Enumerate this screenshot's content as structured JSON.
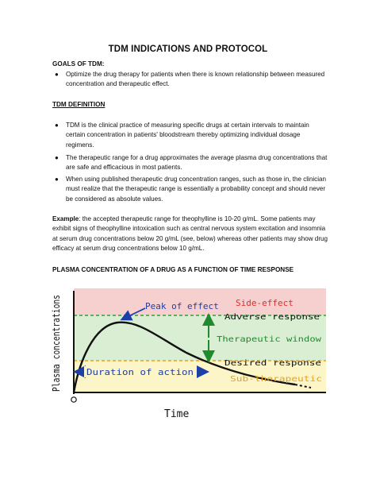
{
  "title": "TDM INDICATIONS AND PROTOCOL",
  "goals": {
    "heading": "GOALS OF TDM:",
    "items": [
      "Optimize the drug therapy for patients when there is known relationship between measured concentration and therapeutic effect."
    ]
  },
  "definition": {
    "heading": "TDM DEFINITION",
    "items": [
      "TDM is the clinical practice of measuring specific drugs at certain intervals to maintain certain concentration in patients' bloodstream thereby optimizing individual dosage regimens.",
      "The therapeutic range for a drug approximates the average plasma drug concentrations that are safe and efficacious in most patients.",
      "When using published therapeutic drug concentration ranges, such as those in, the clinician must realize that the therapeutic range is essentially a probability concept and should never be considered as absolute values."
    ]
  },
  "example": {
    "label": "Example",
    "text": ": the accepted therapeutic range for theophylline is 10-20 g/mL. Some patients may exhibit signs of theophylline intoxication such as central nervous system excitation and insomnia at serum drug concentrations below 20 g/mL (see, below) whereas other patients may show drug efficacy at serum drug concentrations below 10 g/mL."
  },
  "chart_heading": "PLASMA CONCENTRATION OF A DRUG AS A FUNCTION OF TIME RESPONSE",
  "figure": {
    "y_label": "Plasma concentrations",
    "x_label": "Time",
    "origin_label": "O",
    "peak_label": "Peak of effect",
    "side_effect_label": "Side-effect",
    "adverse_label": "Adverse response",
    "window_label": "Therapeutic window",
    "desired_label": "Desired response",
    "sub_label": "Sub-therapeutic",
    "duration_label": "Duration of action",
    "colors": {
      "side_effect_zone": "#f6cfcf",
      "therapeutic_zone": "#d9eed2",
      "sub_zone": "#fbf5c8",
      "red_text": "#d8312b",
      "green": "#1f8a2e",
      "blue": "#1f3fa8",
      "orange": "#e8a020"
    }
  }
}
